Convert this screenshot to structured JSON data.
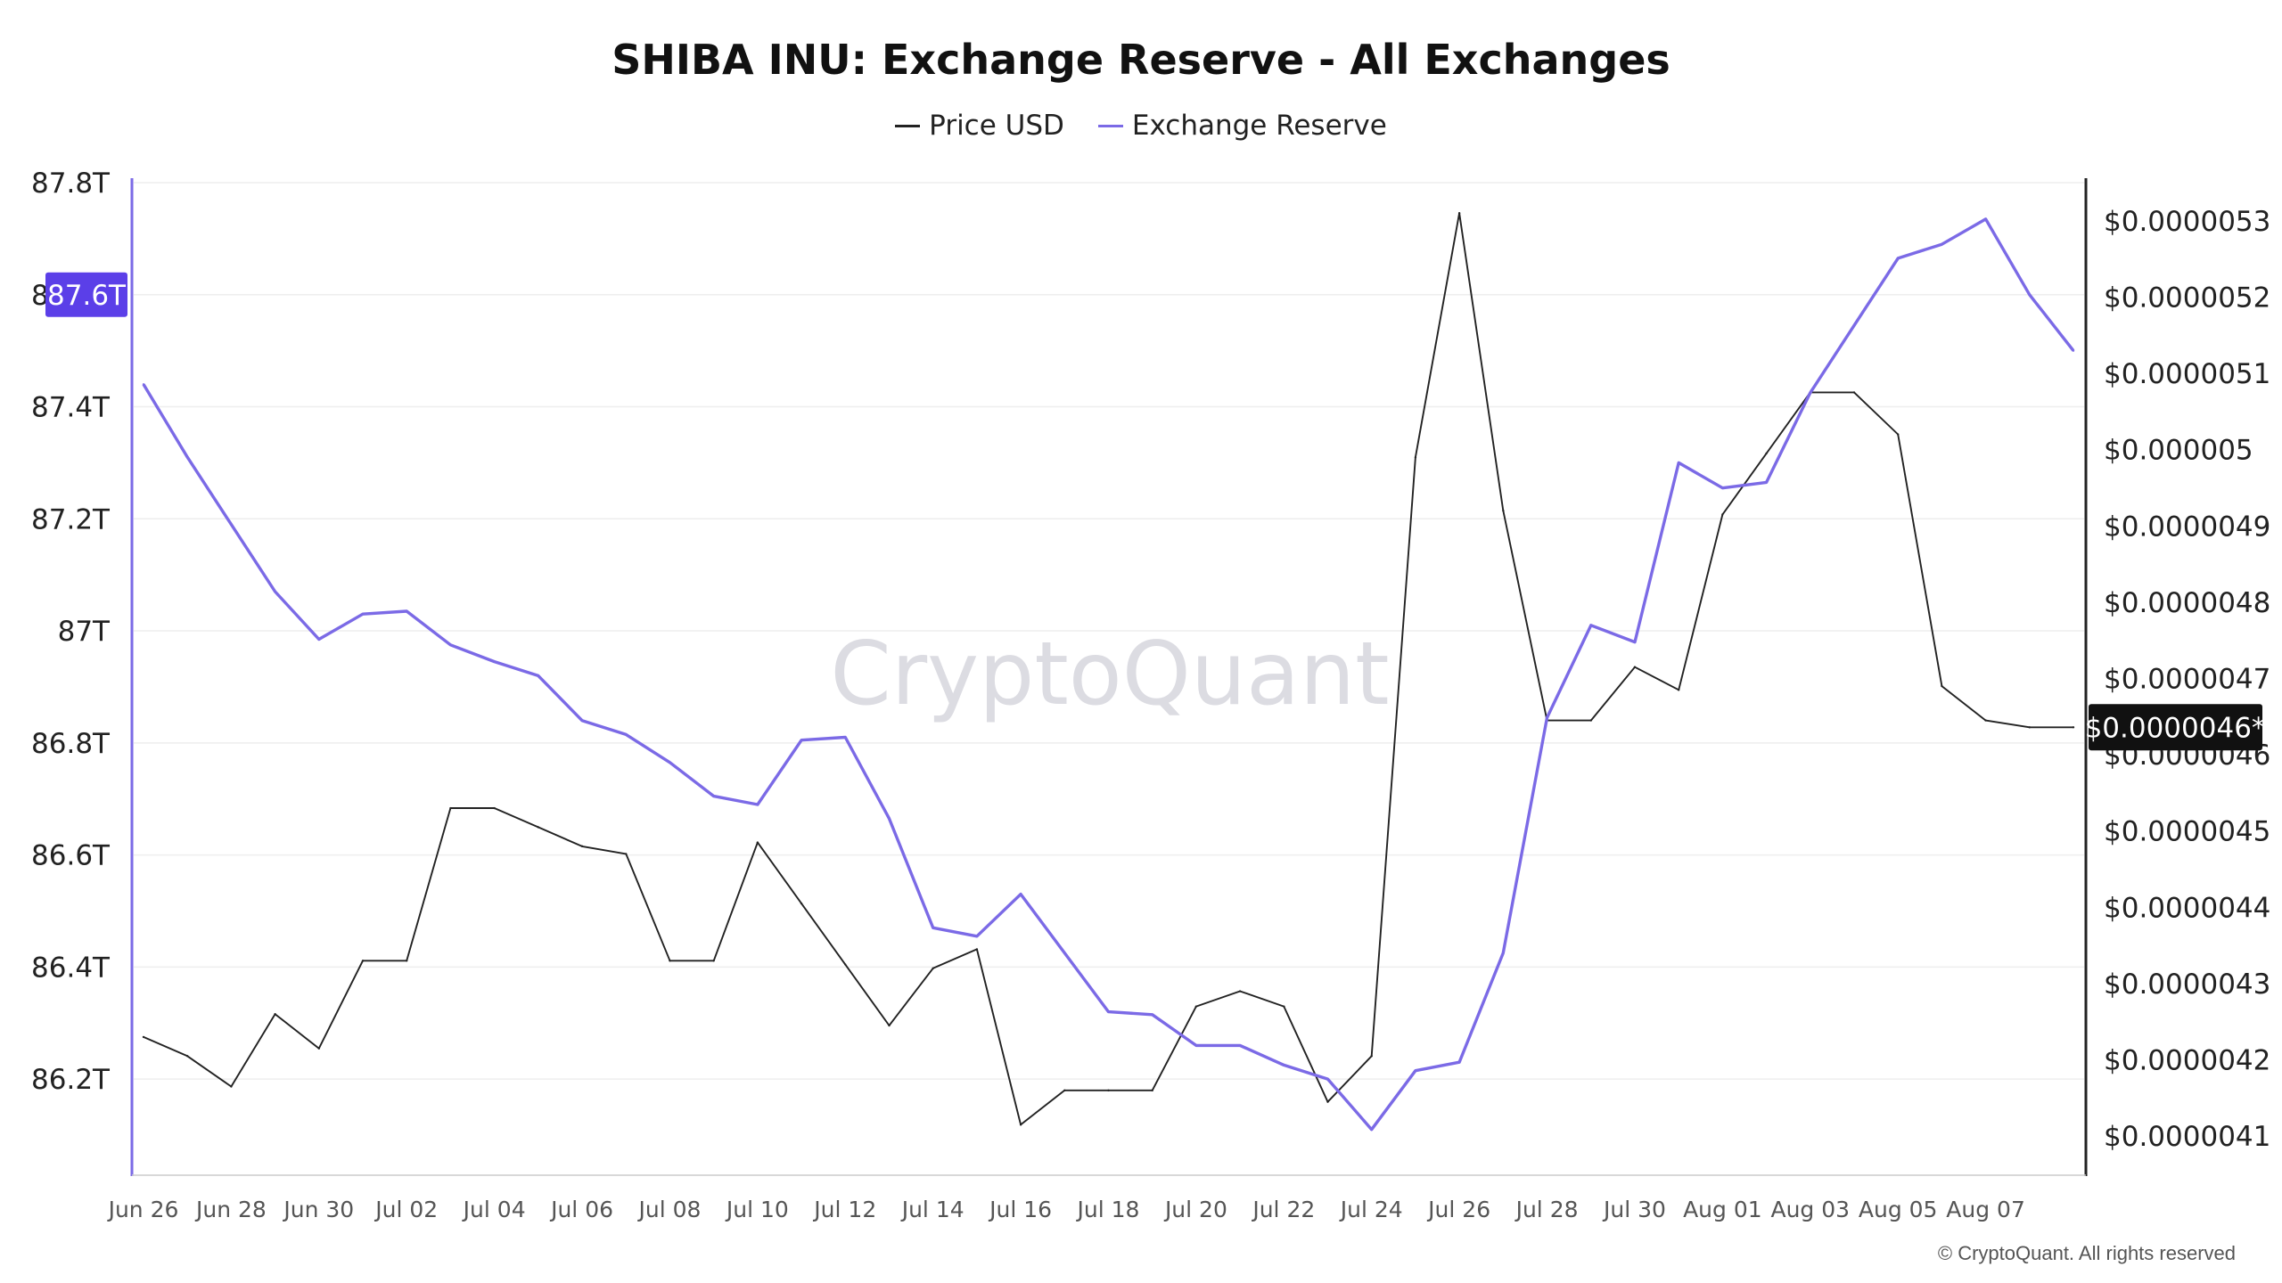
{
  "colors": {
    "price": "#222222",
    "reserve": "#7b6ae6",
    "reserve_axis": "#7b6ae6",
    "badge_left": "#5b3fe8",
    "badge_right": "#111111",
    "grid": "#eeeeee",
    "watermark": "#dcdce2"
  },
  "chart_data": {
    "type": "line",
    "title": "SHIBA INU: Exchange Reserve - All Exchanges",
    "watermark": "CryptoQuant",
    "copyright": "© CryptoQuant. All rights reserved",
    "legend_position": "top-center",
    "grid": true,
    "x_labels": [
      "Jun 26",
      "Jun 28",
      "Jun 30",
      "Jul 02",
      "Jul 04",
      "Jul 06",
      "Jul 08",
      "Jul 10",
      "Jul 12",
      "Jul 14",
      "Jul 16",
      "Jul 18",
      "Jul 20",
      "Jul 22",
      "Jul 24",
      "Jul 26",
      "Jul 28",
      "Jul 30",
      "Aug 01",
      "Aug 03",
      "Aug 05",
      "Aug 07"
    ],
    "x": [
      "Jun 26",
      "Jun 27",
      "Jun 28",
      "Jun 29",
      "Jun 30",
      "Jul 01",
      "Jul 02",
      "Jul 03",
      "Jul 04",
      "Jul 05",
      "Jul 06",
      "Jul 07",
      "Jul 08",
      "Jul 09",
      "Jul 10",
      "Jul 11",
      "Jul 12",
      "Jul 13",
      "Jul 14",
      "Jul 15",
      "Jul 16",
      "Jul 17",
      "Jul 18",
      "Jul 19",
      "Jul 20",
      "Jul 21",
      "Jul 22",
      "Jul 23",
      "Jul 24",
      "Jul 25",
      "Jul 26",
      "Jul 27",
      "Jul 28",
      "Jul 29",
      "Jul 30",
      "Jul 31",
      "Aug 01",
      "Aug 02",
      "Aug 03",
      "Aug 04",
      "Aug 05",
      "Aug 06",
      "Aug 07",
      "Aug 08",
      "Aug 09"
    ],
    "left_axis": {
      "ylim": [
        86.03,
        87.8
      ],
      "ticks": [
        86.2,
        86.4,
        86.6,
        86.8,
        87.0,
        87.2,
        87.4,
        87.6,
        87.8
      ],
      "tick_labels": [
        "86.2T",
        "86.4T",
        "86.6T",
        "86.8T",
        "87T",
        "87.2T",
        "87.4T",
        "87.6T",
        "87.8T"
      ],
      "highlight_value": 87.6,
      "highlight_label": "87.6T"
    },
    "right_axis": {
      "ylim": [
        4.05,
        5.35
      ],
      "ticks": [
        4.1,
        4.2,
        4.3,
        4.4,
        4.5,
        4.6,
        4.7,
        4.8,
        4.9,
        5.0,
        5.1,
        5.2,
        5.3
      ],
      "tick_labels": [
        "$0.0000041",
        "$0.0000042",
        "$0.0000043",
        "$0.0000044",
        "$0.0000045",
        "$0.0000046",
        "$0.0000047",
        "$0.0000048",
        "$0.0000049",
        "$0.000005",
        "$0.0000051",
        "$0.0000052",
        "$0.0000053"
      ],
      "highlight_value": 4.636,
      "highlight_label": "$0.0000046*"
    },
    "series": [
      {
        "name": "Price USD",
        "axis": "right",
        "values": [
          4.23,
          4.205,
          4.165,
          4.26,
          4.215,
          4.33,
          4.33,
          4.53,
          4.53,
          4.505,
          4.48,
          4.47,
          4.33,
          4.33,
          4.485,
          4.405,
          4.325,
          4.245,
          4.32,
          4.345,
          4.115,
          4.16,
          4.16,
          4.16,
          4.27,
          4.29,
          4.27,
          4.145,
          4.205,
          4.99,
          5.31,
          4.92,
          4.645,
          4.645,
          4.715,
          4.685,
          4.915,
          4.995,
          5.075,
          5.075,
          5.02,
          4.69,
          4.645,
          4.636,
          4.636
        ]
      },
      {
        "name": "Exchange Reserve",
        "axis": "left",
        "values": [
          87.44,
          87.31,
          87.19,
          87.07,
          86.985,
          87.03,
          87.035,
          86.975,
          86.945,
          86.92,
          86.84,
          86.815,
          86.765,
          86.705,
          86.69,
          86.805,
          86.81,
          86.665,
          86.47,
          86.455,
          86.53,
          86.425,
          86.32,
          86.315,
          86.26,
          86.26,
          86.225,
          86.2,
          86.11,
          86.215,
          86.23,
          86.425,
          86.845,
          87.01,
          86.98,
          87.3,
          87.255,
          87.265,
          87.425,
          87.545,
          87.665,
          87.69,
          87.735,
          87.6,
          87.5
        ]
      }
    ]
  }
}
